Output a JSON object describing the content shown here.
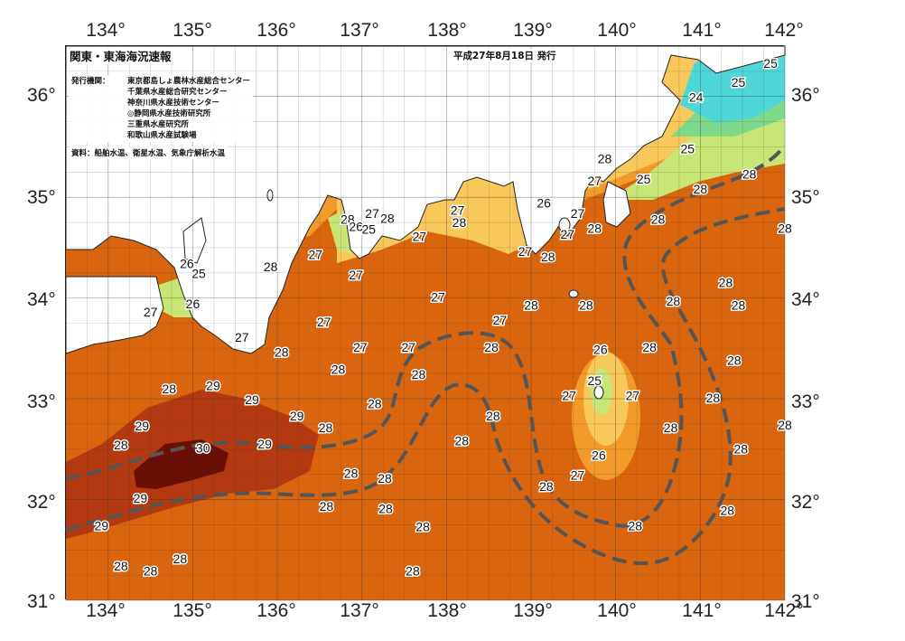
{
  "title": "関東・東海海況速報",
  "issued": "平成27年8月18日 発行",
  "agencies_label": "発行機関：",
  "agencies": [
    "東京都島しょ農林水産総合センター",
    "千葉県水産総合研究センター",
    "神奈川県水産技術センター",
    "◎静岡県水産技術研究所",
    "三重県水産研究所",
    "和歌山県水産試験場"
  ],
  "source": "資料：船舶水温、衛星水温、気象庁解析水温",
  "axes": {
    "lon_labels": [
      "134°",
      "135°",
      "136°",
      "137°",
      "138°",
      "139°",
      "140°",
      "141°",
      "142°"
    ],
    "lat_labels": [
      "36°",
      "35°",
      "34°",
      "33°",
      "32°",
      "31°"
    ],
    "lon_range": [
      133.5,
      142.0
    ],
    "lat_range": [
      31.0,
      36.5
    ]
  },
  "colors": {
    "land": "#ffffff",
    "t30": "#6b0e06",
    "t29": "#b33a10",
    "t28": "#d9650f",
    "t27": "#f29a2a",
    "t26": "#f8c85a",
    "t25": "#c8e676",
    "t24": "#7fd98a",
    "t23": "#4fd6d6",
    "kuroshio": "#555555"
  },
  "temperature_labels": [
    {
      "text": "25",
      "lon": 141.83,
      "lat": 36.32
    },
    {
      "text": "25",
      "lon": 141.45,
      "lat": 36.13
    },
    {
      "text": "24",
      "lon": 140.95,
      "lat": 35.98
    },
    {
      "text": "25",
      "lon": 140.85,
      "lat": 35.47
    },
    {
      "text": "28",
      "lon": 139.87,
      "lat": 35.37
    },
    {
      "text": "25",
      "lon": 140.33,
      "lat": 35.17
    },
    {
      "text": "27",
      "lon": 139.75,
      "lat": 35.15
    },
    {
      "text": "28",
      "lon": 141.58,
      "lat": 35.22
    },
    {
      "text": "28",
      "lon": 141.0,
      "lat": 35.07
    },
    {
      "text": "26",
      "lon": 139.15,
      "lat": 34.93
    },
    {
      "text": "27",
      "lon": 139.55,
      "lat": 34.83
    },
    {
      "text": "27",
      "lon": 139.43,
      "lat": 34.62
    },
    {
      "text": "28",
      "lon": 139.75,
      "lat": 34.68
    },
    {
      "text": "28",
      "lon": 140.5,
      "lat": 34.77
    },
    {
      "text": "28",
      "lon": 142.0,
      "lat": 34.68
    },
    {
      "text": "28",
      "lon": 139.2,
      "lat": 34.4
    },
    {
      "text": "27",
      "lon": 138.13,
      "lat": 34.86
    },
    {
      "text": "28",
      "lon": 138.15,
      "lat": 34.74
    },
    {
      "text": "27",
      "lon": 137.12,
      "lat": 34.83
    },
    {
      "text": "28",
      "lon": 137.3,
      "lat": 34.78
    },
    {
      "text": "28",
      "lon": 136.83,
      "lat": 34.77
    },
    {
      "text": "26",
      "lon": 136.93,
      "lat": 34.7
    },
    {
      "text": "25",
      "lon": 137.08,
      "lat": 34.67
    },
    {
      "text": "27",
      "lon": 137.68,
      "lat": 34.6
    },
    {
      "text": "27",
      "lon": 138.93,
      "lat": 34.45
    },
    {
      "text": "27",
      "lon": 136.93,
      "lat": 34.22
    },
    {
      "text": "27",
      "lon": 136.45,
      "lat": 34.42
    },
    {
      "text": "28",
      "lon": 135.92,
      "lat": 34.3
    },
    {
      "text": "26",
      "lon": 134.93,
      "lat": 34.33
    },
    {
      "text": "25",
      "lon": 135.07,
      "lat": 34.23
    },
    {
      "text": "26",
      "lon": 135.0,
      "lat": 33.93
    },
    {
      "text": "27",
      "lon": 134.5,
      "lat": 33.85
    },
    {
      "text": "27",
      "lon": 137.9,
      "lat": 34.0
    },
    {
      "text": "28",
      "lon": 139.0,
      "lat": 33.92
    },
    {
      "text": "28",
      "lon": 139.65,
      "lat": 33.92
    },
    {
      "text": "28",
      "lon": 140.68,
      "lat": 33.96
    },
    {
      "text": "28",
      "lon": 141.3,
      "lat": 34.14
    },
    {
      "text": "28",
      "lon": 141.45,
      "lat": 33.92
    },
    {
      "text": "27",
      "lon": 138.63,
      "lat": 33.77
    },
    {
      "text": "27",
      "lon": 136.55,
      "lat": 33.75
    },
    {
      "text": "27",
      "lon": 135.58,
      "lat": 33.6
    },
    {
      "text": "28",
      "lon": 136.05,
      "lat": 33.45
    },
    {
      "text": "27",
      "lon": 136.98,
      "lat": 33.5
    },
    {
      "text": "27",
      "lon": 137.55,
      "lat": 33.5
    },
    {
      "text": "28",
      "lon": 138.53,
      "lat": 33.5
    },
    {
      "text": "26",
      "lon": 139.82,
      "lat": 33.48
    },
    {
      "text": "28",
      "lon": 140.4,
      "lat": 33.5
    },
    {
      "text": "28",
      "lon": 141.4,
      "lat": 33.37
    },
    {
      "text": "28",
      "lon": 136.72,
      "lat": 33.28
    },
    {
      "text": "28",
      "lon": 137.67,
      "lat": 33.23
    },
    {
      "text": "25",
      "lon": 139.75,
      "lat": 33.17
    },
    {
      "text": "29",
      "lon": 135.24,
      "lat": 33.12
    },
    {
      "text": "28",
      "lon": 134.72,
      "lat": 33.09
    },
    {
      "text": "27",
      "lon": 139.45,
      "lat": 33.02
    },
    {
      "text": "27",
      "lon": 140.2,
      "lat": 33.02
    },
    {
      "text": "28",
      "lon": 141.15,
      "lat": 33.0
    },
    {
      "text": "29",
      "lon": 135.7,
      "lat": 32.98
    },
    {
      "text": "28",
      "lon": 137.15,
      "lat": 32.94
    },
    {
      "text": "29",
      "lon": 136.23,
      "lat": 32.82
    },
    {
      "text": "28",
      "lon": 138.55,
      "lat": 32.82
    },
    {
      "text": "28",
      "lon": 142.0,
      "lat": 32.73
    },
    {
      "text": "29",
      "lon": 134.4,
      "lat": 32.72
    },
    {
      "text": "28",
      "lon": 136.57,
      "lat": 32.7
    },
    {
      "text": "28",
      "lon": 140.65,
      "lat": 32.7
    },
    {
      "text": "28",
      "lon": 134.15,
      "lat": 32.53
    },
    {
      "text": "29",
      "lon": 135.85,
      "lat": 32.54
    },
    {
      "text": "30",
      "lon": 135.12,
      "lat": 32.5
    },
    {
      "text": "28",
      "lon": 138.18,
      "lat": 32.57
    },
    {
      "text": "26",
      "lon": 139.8,
      "lat": 32.43
    },
    {
      "text": "28",
      "lon": 141.48,
      "lat": 32.49
    },
    {
      "text": "28",
      "lon": 136.87,
      "lat": 32.25
    },
    {
      "text": "28",
      "lon": 137.27,
      "lat": 32.2
    },
    {
      "text": "27",
      "lon": 139.55,
      "lat": 32.23
    },
    {
      "text": "28",
      "lon": 139.18,
      "lat": 32.12
    },
    {
      "text": "29",
      "lon": 134.38,
      "lat": 32.0
    },
    {
      "text": "28",
      "lon": 136.58,
      "lat": 31.92
    },
    {
      "text": "28",
      "lon": 137.28,
      "lat": 31.9
    },
    {
      "text": "28",
      "lon": 141.32,
      "lat": 31.88
    },
    {
      "text": "29",
      "lon": 133.92,
      "lat": 31.73
    },
    {
      "text": "28",
      "lon": 137.72,
      "lat": 31.72
    },
    {
      "text": "28",
      "lon": 140.23,
      "lat": 31.73
    },
    {
      "text": "28",
      "lon": 134.85,
      "lat": 31.4
    },
    {
      "text": "28",
      "lon": 134.15,
      "lat": 31.33
    },
    {
      "text": "28",
      "lon": 134.5,
      "lat": 31.28
    },
    {
      "text": "28",
      "lon": 137.6,
      "lat": 31.28
    }
  ]
}
